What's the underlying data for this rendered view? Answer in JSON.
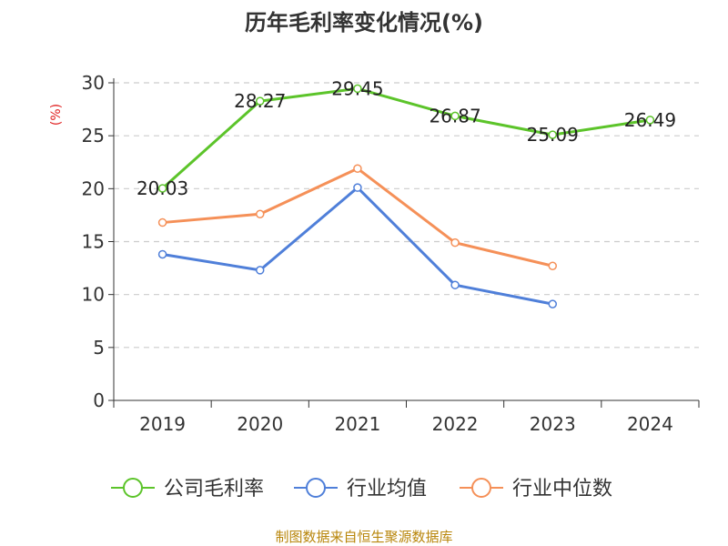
{
  "chart_data": {
    "type": "line",
    "title": "历年毛利率变化情况(%)",
    "ylabel": "(%)",
    "xlabel": "",
    "categories": [
      "2019",
      "2020",
      "2021",
      "2022",
      "2023",
      "2024"
    ],
    "ylim": [
      0,
      30
    ],
    "yticks": [
      0,
      5,
      10,
      15,
      20,
      25,
      30
    ],
    "grid": true,
    "legend_position": "bottom",
    "series": [
      {
        "name": "公司毛利率",
        "color": "#5cc42a",
        "values": [
          20.03,
          28.27,
          29.45,
          26.87,
          25.09,
          26.49
        ],
        "labels": [
          "20.03",
          "28.27",
          "29.45",
          "26.87",
          "25.09",
          "26.49"
        ]
      },
      {
        "name": "行业均值",
        "color": "#4f7fd9",
        "values": [
          13.8,
          12.3,
          20.1,
          10.9,
          9.1,
          null
        ]
      },
      {
        "name": "行业中位数",
        "color": "#f59058",
        "values": [
          16.8,
          17.6,
          21.9,
          14.9,
          12.7,
          null
        ]
      }
    ]
  },
  "source": "制图数据来自恒生聚源数据库"
}
